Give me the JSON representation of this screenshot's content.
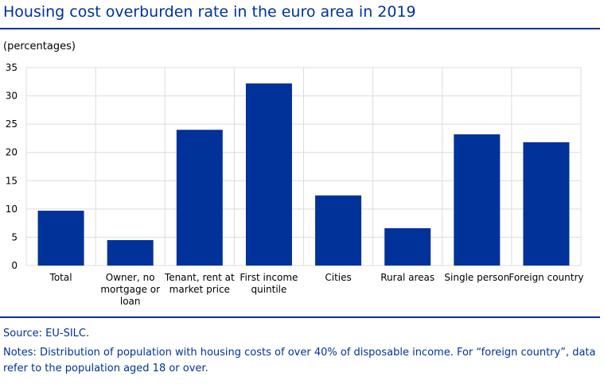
{
  "header": {
    "title": "Housing cost overburden rate in the euro area in 2019",
    "unit": "(percentages)"
  },
  "chart_data": {
    "type": "bar",
    "title": "Housing cost overburden rate in the euro area in 2019",
    "ylabel": "(percentages)",
    "xlabel": "",
    "ylim": [
      0,
      35
    ],
    "yticks": [
      0,
      5,
      10,
      15,
      20,
      25,
      30,
      35
    ],
    "grid": true,
    "categories": [
      "Total",
      "Owner, no mortgage or loan",
      "Tenant, rent at market price",
      "First income quintile",
      "Cities",
      "Rural areas",
      "Single person",
      "Foreign country"
    ],
    "category_lines": [
      [
        "Total"
      ],
      [
        "Owner, no",
        "mortgage or",
        "loan"
      ],
      [
        "Tenant, rent at",
        "market price"
      ],
      [
        "First income",
        "quintile"
      ],
      [
        "Cities"
      ],
      [
        "Rural areas"
      ],
      [
        "Single person"
      ],
      [
        "Foreign country"
      ]
    ],
    "values": [
      9.7,
      4.5,
      24.0,
      32.2,
      12.4,
      6.6,
      23.2,
      21.8
    ],
    "bar_color": "#003299"
  },
  "footer": {
    "source": "Source: EU-SILC.",
    "notes": "Notes: Distribution of population with housing costs of over 40% of disposable income. For “foreign country”, data refer to the population aged 18 or over."
  }
}
